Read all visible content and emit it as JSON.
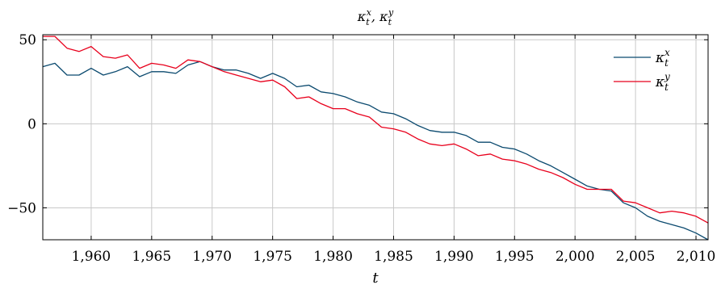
{
  "chart_data": {
    "type": "line",
    "title": "κ_t^x, κ_t^y",
    "xlabel": "t",
    "ylabel": "",
    "xlim": [
      1956,
      2011
    ],
    "ylim": [
      -69,
      53
    ],
    "xticks": [
      1960,
      1965,
      1970,
      1975,
      1980,
      1985,
      1990,
      1995,
      2000,
      2005,
      2010
    ],
    "xtick_labels": [
      "1,960",
      "1,965",
      "1,970",
      "1,975",
      "1,980",
      "1,985",
      "1,990",
      "1,995",
      "2,000",
      "2,005",
      "2,010"
    ],
    "yticks": [
      50,
      0,
      -50
    ],
    "ytick_labels": [
      "50",
      "0",
      "−50"
    ],
    "grid": true,
    "legend_position": "top-right",
    "x": [
      1956,
      1957,
      1958,
      1959,
      1960,
      1961,
      1962,
      1963,
      1964,
      1965,
      1966,
      1967,
      1968,
      1969,
      1970,
      1971,
      1972,
      1973,
      1974,
      1975,
      1976,
      1977,
      1978,
      1979,
      1980,
      1981,
      1982,
      1983,
      1984,
      1985,
      1986,
      1987,
      1988,
      1989,
      1990,
      1991,
      1992,
      1993,
      1994,
      1995,
      1996,
      1997,
      1998,
      1999,
      2000,
      2001,
      2002,
      2003,
      2004,
      2005,
      2006,
      2007,
      2008,
      2009,
      2010,
      2011
    ],
    "series": [
      {
        "name": "κ_t^x",
        "color": "#0b4a6f",
        "values": [
          34,
          36,
          29,
          29,
          33,
          29,
          31,
          34,
          28,
          31,
          31,
          30,
          35,
          37,
          34,
          32,
          32,
          30,
          27,
          30,
          27,
          22,
          23,
          19,
          18,
          16,
          13,
          11,
          7,
          6,
          3,
          -1,
          -4,
          -5,
          -5,
          -7,
          -11,
          -11,
          -14,
          -15,
          -18,
          -22,
          -25,
          -29,
          -33,
          -37,
          -39,
          -40,
          -47,
          -50,
          -55,
          -58,
          -60,
          -62,
          -65,
          -69
        ]
      },
      {
        "name": "κ_t^y",
        "color": "#e8001c",
        "values": [
          52,
          52,
          45,
          43,
          46,
          40,
          39,
          41,
          33,
          36,
          35,
          33,
          38,
          37,
          34,
          31,
          29,
          27,
          25,
          26,
          22,
          15,
          16,
          12,
          9,
          9,
          6,
          4,
          -2,
          -3,
          -5,
          -9,
          -12,
          -13,
          -12,
          -15,
          -19,
          -18,
          -21,
          -22,
          -24,
          -27,
          -29,
          -32,
          -36,
          -39,
          -39,
          -39,
          -46,
          -47,
          -50,
          -53,
          -52,
          -53,
          -55,
          -59
        ]
      }
    ]
  }
}
